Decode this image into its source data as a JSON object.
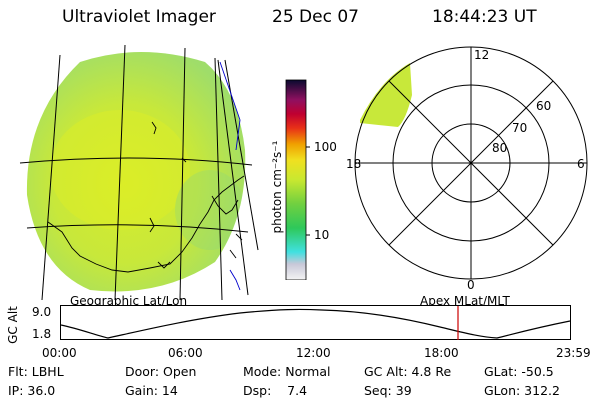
{
  "header": {
    "title": "Ultraviolet Imager",
    "date": "25 Dec 07",
    "time": "18:44:23 UT"
  },
  "colorbar": {
    "unit_label": "photon cm⁻²s⁻¹",
    "ticks": [
      "100",
      "10"
    ]
  },
  "polar_plot": {
    "mlt_labels": [
      "12",
      "18",
      "6",
      "0"
    ],
    "lat_labels": [
      "60",
      "70",
      "80"
    ]
  },
  "timeline": {
    "left_label": "Geographic Lat/Lon",
    "right_label": "Apex MLat/MLT",
    "axis_title": "GC Alt",
    "y_ticks": [
      "9.0",
      "1.8"
    ],
    "x_ticks": [
      "00:00",
      "06:00",
      "12:00",
      "18:00",
      "23:59"
    ],
    "marker_color": "#cc0000"
  },
  "status": {
    "flt": "Flt: LBHL",
    "door": "Door: Open",
    "mode": "Mode: Normal",
    "gc_alt": "GC Alt: 4.8 Re",
    "glat": "GLat: -50.5",
    "ip": "IP: 36.0",
    "gain": "Gain: 14",
    "dsp": "Dsp:    7.4",
    "seq": "Seq: 39",
    "glon": "GLon: 312.2"
  }
}
